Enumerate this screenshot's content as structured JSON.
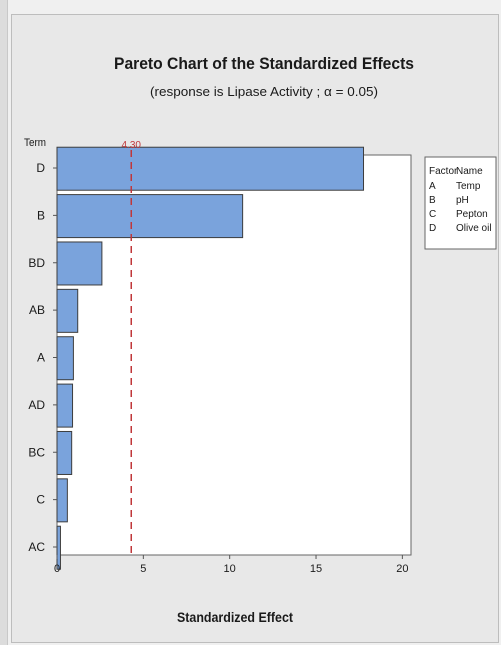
{
  "chart_data": {
    "type": "bar",
    "orientation": "horizontal",
    "title": "Pareto Chart of the Standardized Effects",
    "subtitle": "(response is Lipase Activity ; α = 0.05)",
    "xlabel": "Standardized Effect",
    "ylabel": "Term",
    "categories": [
      "D",
      "B",
      "BD",
      "AB",
      "A",
      "AD",
      "BC",
      "C",
      "AC"
    ],
    "values": [
      17.75,
      10.75,
      2.6,
      1.2,
      0.95,
      0.9,
      0.85,
      0.6,
      0.2
    ],
    "xlim": [
      0,
      20.5
    ],
    "xticks": [
      0,
      5,
      10,
      15,
      20
    ],
    "reference_line": {
      "value": 4.3,
      "label": "4.30",
      "color": "#c0373a",
      "style": "dashed"
    },
    "bar_color": "#7aa3dc",
    "bar_edge_color": "#3d3d3d",
    "legend": {
      "position": "right",
      "headers": [
        "Factor",
        "Name"
      ],
      "rows": [
        [
          "A",
          "Temp"
        ],
        [
          "B",
          "pH"
        ],
        [
          "C",
          "Pepton"
        ],
        [
          "D",
          "Olive oil"
        ]
      ]
    }
  }
}
